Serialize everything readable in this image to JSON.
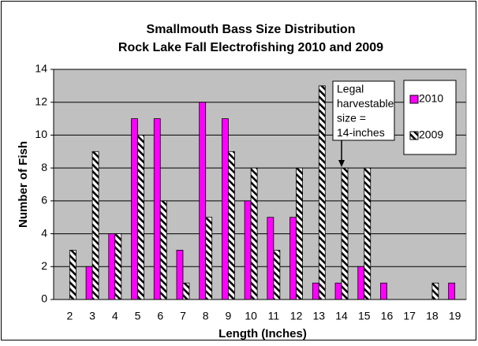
{
  "chart_data": {
    "type": "bar",
    "title": "Smallmouth Bass Size Distribution",
    "subtitle": "Rock Lake Fall Electrofishing 2010 and 2009",
    "x_label": "Length (Inches)",
    "y_label": "Number of Fish",
    "categories": [
      "2",
      "3",
      "4",
      "5",
      "6",
      "7",
      "8",
      "9",
      "10",
      "11",
      "12",
      "13",
      "14",
      "15",
      "16",
      "17",
      "18",
      "19"
    ],
    "series": [
      {
        "name": "2010",
        "color": "#ff00ff",
        "hatch": false,
        "values": [
          0,
          2,
          4,
          11,
          11,
          3,
          12,
          11,
          6,
          5,
          5,
          1,
          1,
          2,
          1,
          0,
          0,
          1
        ]
      },
      {
        "name": "2009",
        "color": "#000000",
        "hatch": true,
        "values": [
          3,
          9,
          4,
          10,
          6,
          1,
          5,
          9,
          8,
          3,
          8,
          13,
          8,
          8,
          0,
          0,
          1,
          0
        ]
      }
    ],
    "ylim": [
      0,
      14
    ],
    "yticks": [
      0,
      2,
      4,
      6,
      8,
      10,
      12,
      14
    ],
    "grid": true,
    "plot_background": "#c0c0c0",
    "annotation": {
      "lines": [
        "Legal",
        "harvestable",
        "size =",
        "14-inches"
      ],
      "category": "14"
    },
    "legend": "top-right"
  }
}
